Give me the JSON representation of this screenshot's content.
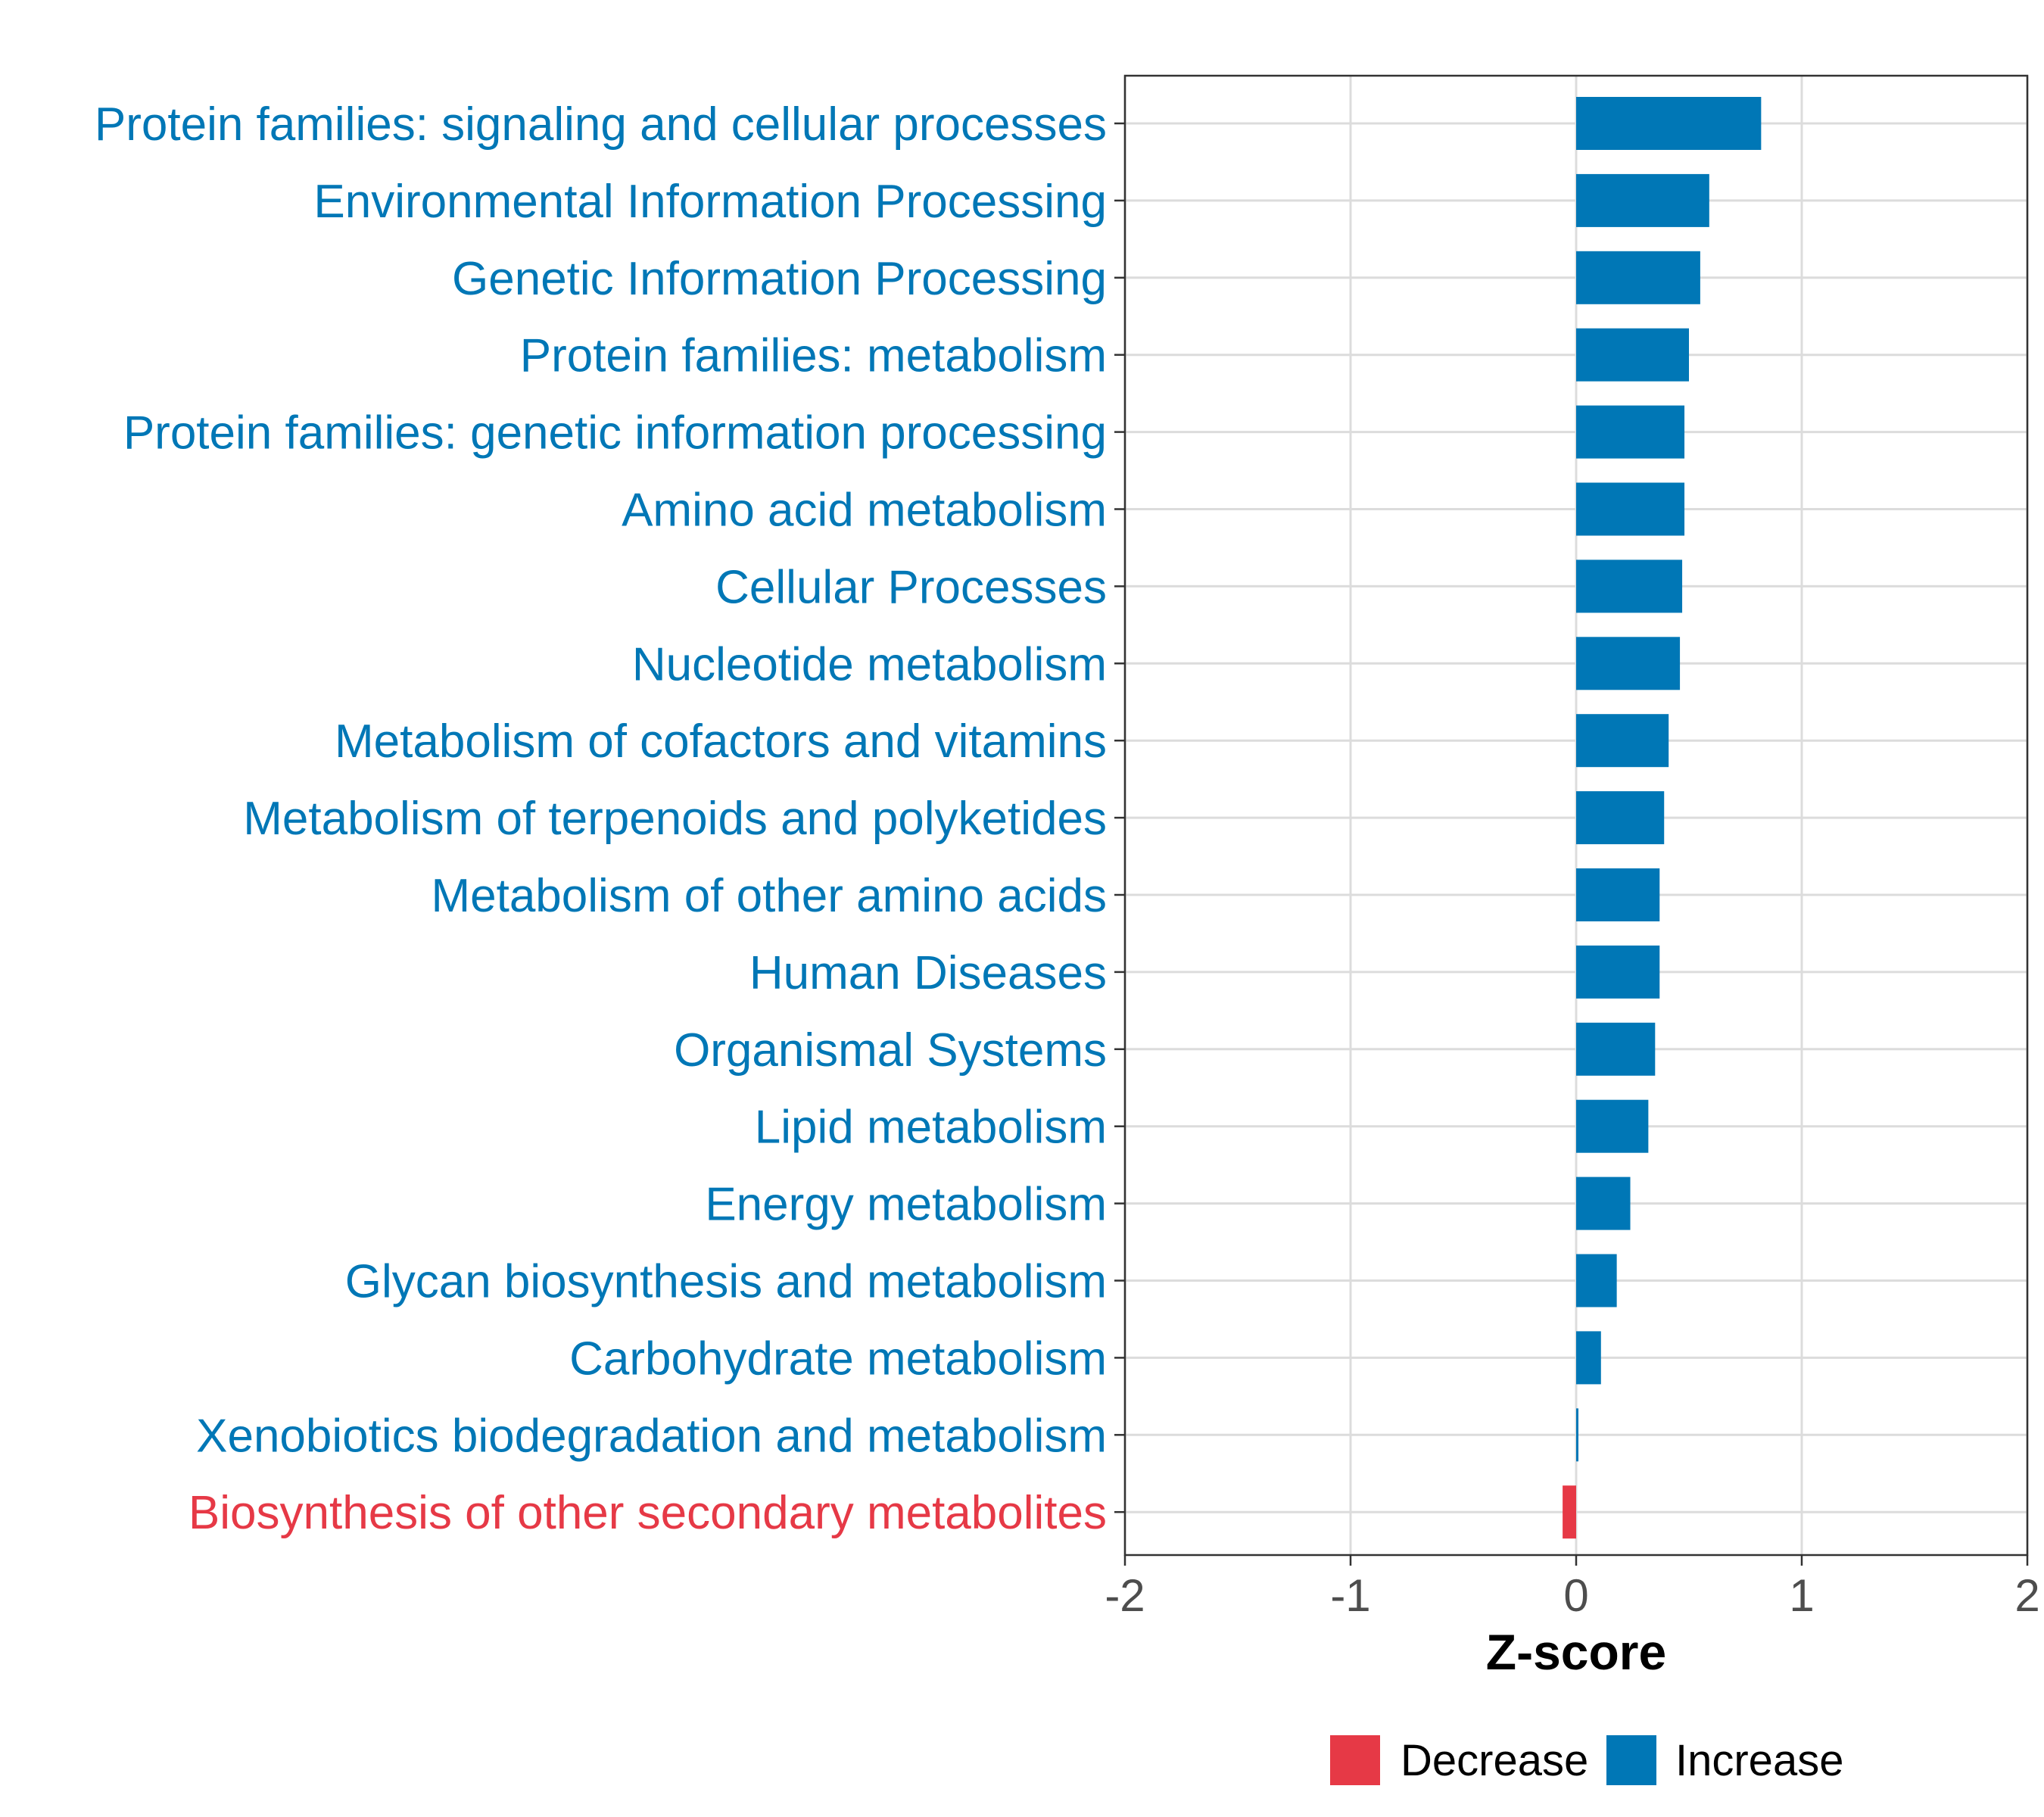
{
  "chart_data": {
    "type": "bar",
    "orientation": "horizontal",
    "title": "",
    "xlabel": "Z-score",
    "ylabel": "",
    "xlim": [
      -2,
      2
    ],
    "xticks": [
      -2,
      -1,
      0,
      1,
      2
    ],
    "xtick_labels": [
      "-2",
      "-1",
      "0",
      "1",
      "2"
    ],
    "grid": true,
    "legend_position": "bottom",
    "colors": {
      "Decrease": "#E63946",
      "Increase": "#0077B6"
    },
    "categories": [
      "Protein families: signaling and cellular processes",
      "Environmental Information Processing",
      "Genetic Information Processing",
      "Protein families: metabolism",
      "Protein families: genetic information processing",
      "Amino acid metabolism",
      "Cellular Processes",
      "Nucleotide metabolism",
      "Metabolism of cofactors and vitamins",
      "Metabolism of terpenoids and polyketides",
      "Metabolism of other amino acids",
      "Human Diseases",
      "Organismal Systems",
      "Lipid metabolism",
      "Energy metabolism",
      "Glycan biosynthesis and metabolism",
      "Carbohydrate metabolism",
      "Xenobiotics biodegradation and metabolism",
      "Biosynthesis of other secondary metabolites"
    ],
    "values": [
      0.82,
      0.59,
      0.55,
      0.5,
      0.48,
      0.48,
      0.47,
      0.46,
      0.41,
      0.39,
      0.37,
      0.37,
      0.35,
      0.32,
      0.24,
      0.18,
      0.11,
      0.01,
      -0.06
    ],
    "groups": [
      "Increase",
      "Increase",
      "Increase",
      "Increase",
      "Increase",
      "Increase",
      "Increase",
      "Increase",
      "Increase",
      "Increase",
      "Increase",
      "Increase",
      "Increase",
      "Increase",
      "Increase",
      "Increase",
      "Increase",
      "Increase",
      "Decrease"
    ],
    "legend": [
      "Decrease",
      "Increase"
    ]
  }
}
